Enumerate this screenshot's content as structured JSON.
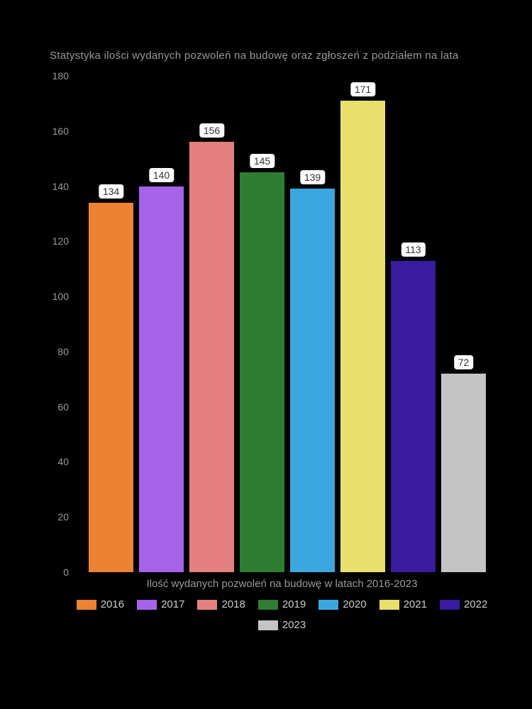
{
  "chart": {
    "type": "bar",
    "title": "Statystyka ilości wydanych pozwoleń na budowę oraz zgłoszeń z podziałem na lata",
    "title_color": "#999999",
    "title_fontsize": 15,
    "background_color": "#000000",
    "text_color": "#999999",
    "xlabel": "Ilość wydanych pozwoleń na budowę w latach 2016-2023",
    "ylim": [
      0,
      180
    ],
    "ytick_step": 20,
    "yticks": [
      {
        "value": 0,
        "label": "0"
      },
      {
        "value": 20,
        "label": "20"
      },
      {
        "value": 40,
        "label": "40"
      },
      {
        "value": 60,
        "label": "60"
      },
      {
        "value": 80,
        "label": "80"
      },
      {
        "value": 100,
        "label": "100"
      },
      {
        "value": 120,
        "label": "120"
      },
      {
        "value": 140,
        "label": "140"
      },
      {
        "value": 160,
        "label": "160"
      },
      {
        "value": 180,
        "label": "180"
      }
    ],
    "series": [
      {
        "year": "2016",
        "value": 134,
        "color": "#ec8232"
      },
      {
        "year": "2017",
        "value": 140,
        "color": "#a463e8"
      },
      {
        "year": "2018",
        "value": 156,
        "color": "#e58080"
      },
      {
        "year": "2019",
        "value": 145,
        "color": "#2e7d32"
      },
      {
        "year": "2020",
        "value": 139,
        "color": "#3ba7e0"
      },
      {
        "year": "2021",
        "value": 171,
        "color": "#e8e06a"
      },
      {
        "year": "2022",
        "value": 113,
        "color": "#3a1a9e"
      },
      {
        "year": "2023",
        "value": 72,
        "color": "#c4c4c4"
      }
    ],
    "label_background": "#ffffff",
    "label_text_color": "#333333",
    "label_fontsize": 14,
    "legend_text_color": "#cccccc",
    "bar_gap": 8
  }
}
